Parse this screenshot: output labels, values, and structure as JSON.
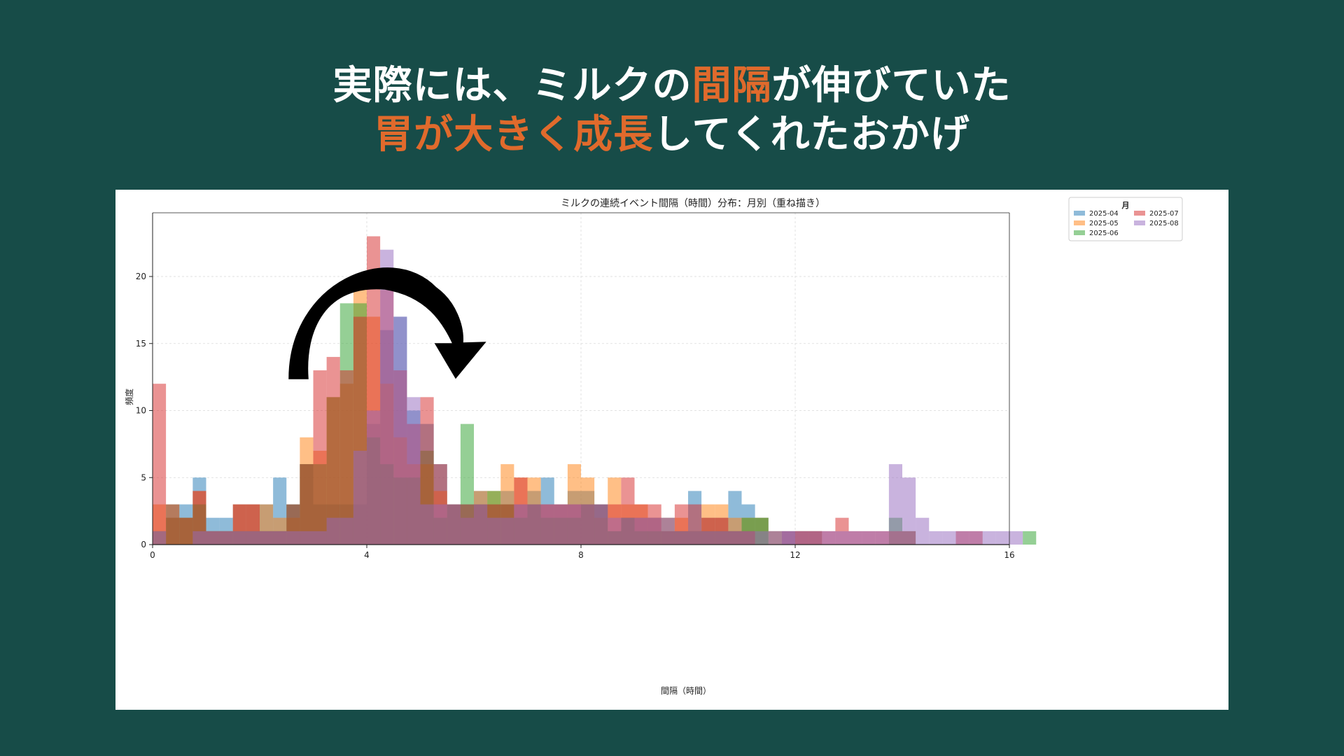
{
  "headline": {
    "line1": [
      {
        "text": "実際には、ミルクの",
        "accent": false
      },
      {
        "text": "間隔",
        "accent": true
      },
      {
        "text": "が伸びていた",
        "accent": false
      }
    ],
    "line2": [
      {
        "text": "胃が大きく成長",
        "accent": true
      },
      {
        "text": "してくれたおかげ",
        "accent": false
      }
    ]
  },
  "colors": {
    "background": "#174c48",
    "accent": "#e06a2c",
    "panel": "#ffffff"
  },
  "annotation": {
    "icon": "curved-arrow-right-icon"
  },
  "chart_data": {
    "type": "bar",
    "title": "ミルクの連続イベント間隔（時間）分布：月別（重ね描き）",
    "xlabel": "間隔（時間）",
    "ylabel": "頻度",
    "xlim": [
      0,
      16
    ],
    "ylim": [
      0,
      24
    ],
    "xticks": [
      "0",
      "4",
      "8",
      "12",
      "16"
    ],
    "yticks": [
      "0",
      "5",
      "10",
      "15",
      "20"
    ],
    "grid": true,
    "bin_width": 0.25,
    "legend": {
      "title": "月",
      "placement": "top-right",
      "columns": 2
    },
    "series": [
      {
        "name": "2025-04",
        "color": "#1f77b4",
        "values": [
          0,
          2,
          3,
          5,
          2,
          2,
          3,
          3,
          3,
          5,
          3,
          6,
          3,
          3,
          3,
          3,
          9,
          16,
          17,
          10,
          9,
          6,
          3,
          3,
          4,
          3,
          4,
          3,
          4,
          5,
          3,
          4,
          4,
          3,
          1,
          2,
          2,
          2,
          2,
          1,
          4,
          2,
          2,
          4,
          3,
          2,
          1,
          1,
          1,
          1,
          0,
          0,
          0,
          0,
          0,
          0,
          0,
          0,
          0,
          0,
          0,
          0,
          0,
          0,
          0,
          0
        ]
      },
      {
        "name": "2025-05",
        "color": "#ff7f0e",
        "values": [
          3,
          2,
          2,
          4,
          1,
          1,
          3,
          3,
          3,
          2,
          2,
          8,
          7,
          11,
          12,
          20,
          17,
          12,
          8,
          6,
          6,
          4,
          3,
          2,
          4,
          4,
          6,
          5,
          5,
          3,
          3,
          6,
          5,
          2,
          5,
          3,
          3,
          2,
          2,
          2,
          1,
          3,
          3,
          2,
          2,
          2,
          1,
          0,
          1,
          1,
          0,
          0,
          0,
          0,
          0,
          0,
          0,
          0,
          0,
          0,
          0,
          0,
          0,
          0,
          0,
          0
        ]
      },
      {
        "name": "2025-06",
        "color": "#2ca02c",
        "values": [
          1,
          3,
          2,
          3,
          1,
          1,
          1,
          1,
          1,
          1,
          3,
          6,
          6,
          11,
          18,
          18,
          8,
          6,
          5,
          5,
          7,
          2,
          3,
          9,
          3,
          4,
          3,
          2,
          3,
          2,
          2,
          2,
          3,
          3,
          1,
          2,
          1,
          1,
          1,
          1,
          1,
          1,
          1,
          1,
          2,
          2,
          0,
          0,
          0,
          0,
          0,
          0,
          0,
          0,
          0,
          2,
          1,
          0,
          0,
          0,
          0,
          0,
          0,
          0,
          0,
          1
        ]
      },
      {
        "name": "2025-07",
        "color": "#d62728",
        "values": [
          12,
          3,
          2,
          4,
          1,
          1,
          3,
          3,
          1,
          1,
          3,
          6,
          13,
          14,
          13,
          17,
          23,
          19,
          13,
          9,
          11,
          6,
          3,
          3,
          3,
          3,
          3,
          5,
          3,
          3,
          3,
          3,
          3,
          3,
          3,
          5,
          3,
          3,
          1,
          3,
          3,
          2,
          2,
          1,
          1,
          0,
          0,
          1,
          1,
          1,
          1,
          2,
          1,
          1,
          1,
          1,
          1,
          0,
          0,
          0,
          1,
          1,
          0,
          0,
          0,
          0
        ]
      },
      {
        "name": "2025-08",
        "color": "#9467bd",
        "values": [
          1,
          0,
          0,
          1,
          1,
          1,
          1,
          1,
          1,
          1,
          1,
          1,
          1,
          2,
          2,
          7,
          10,
          22,
          17,
          11,
          3,
          3,
          3,
          2,
          3,
          2,
          2,
          3,
          3,
          3,
          3,
          3,
          3,
          3,
          2,
          2,
          2,
          2,
          2,
          1,
          1,
          1,
          1,
          1,
          1,
          1,
          1,
          1,
          1,
          1,
          1,
          1,
          1,
          1,
          1,
          6,
          5,
          2,
          1,
          1,
          1,
          1,
          1,
          1,
          1,
          0
        ]
      }
    ]
  }
}
